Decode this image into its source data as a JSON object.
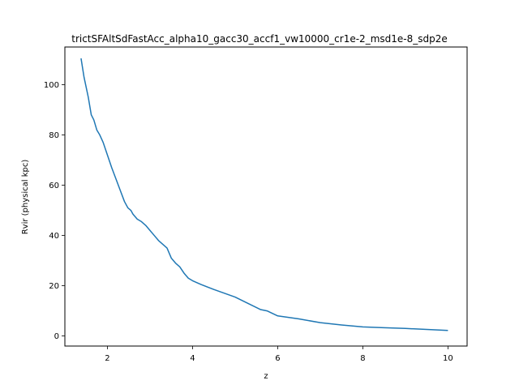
{
  "chart_data": {
    "type": "line",
    "title": "trictSFAltSdFastAcc_alpha10_gacc30_accf1_vw10000_cr1e-2_msd1e-8_sdp2e",
    "xlabel": "z",
    "ylabel": "Rvir (physical kpc)",
    "xlim": [
      1,
      10.45
    ],
    "ylim": [
      -4,
      115
    ],
    "xticks": [
      2,
      4,
      6,
      8,
      10
    ],
    "yticks": [
      0,
      20,
      40,
      60,
      80,
      100
    ],
    "grid": false,
    "line_color": "#1f77b4",
    "series": [
      {
        "x": [
          1.38,
          1.45,
          1.55,
          1.62,
          1.68,
          1.75,
          1.82,
          1.9,
          2.0,
          2.1,
          2.2,
          2.3,
          2.4,
          2.48,
          2.55,
          2.6,
          2.7,
          2.8,
          2.9,
          3.0,
          3.1,
          3.2,
          3.3,
          3.4,
          3.5,
          3.6,
          3.7,
          3.8,
          3.9,
          4.0,
          4.2,
          4.5,
          5.0,
          5.3,
          5.6,
          5.75,
          6.0,
          6.5,
          7.0,
          7.5,
          8.0,
          8.5,
          9.0,
          9.5,
          10.0
        ],
        "y": [
          110.5,
          103,
          95,
          88,
          86,
          82,
          80,
          77,
          72,
          67,
          62.5,
          58,
          53.5,
          51,
          50,
          48.5,
          46.5,
          45.5,
          44,
          42,
          40,
          38,
          36.5,
          35,
          31,
          29,
          27.5,
          25,
          23,
          22,
          20.5,
          18.5,
          15.5,
          13,
          10.5,
          10,
          8,
          6.8,
          5.3,
          4.4,
          3.6,
          3.3,
          3.0,
          2.6,
          2.2
        ]
      }
    ]
  }
}
